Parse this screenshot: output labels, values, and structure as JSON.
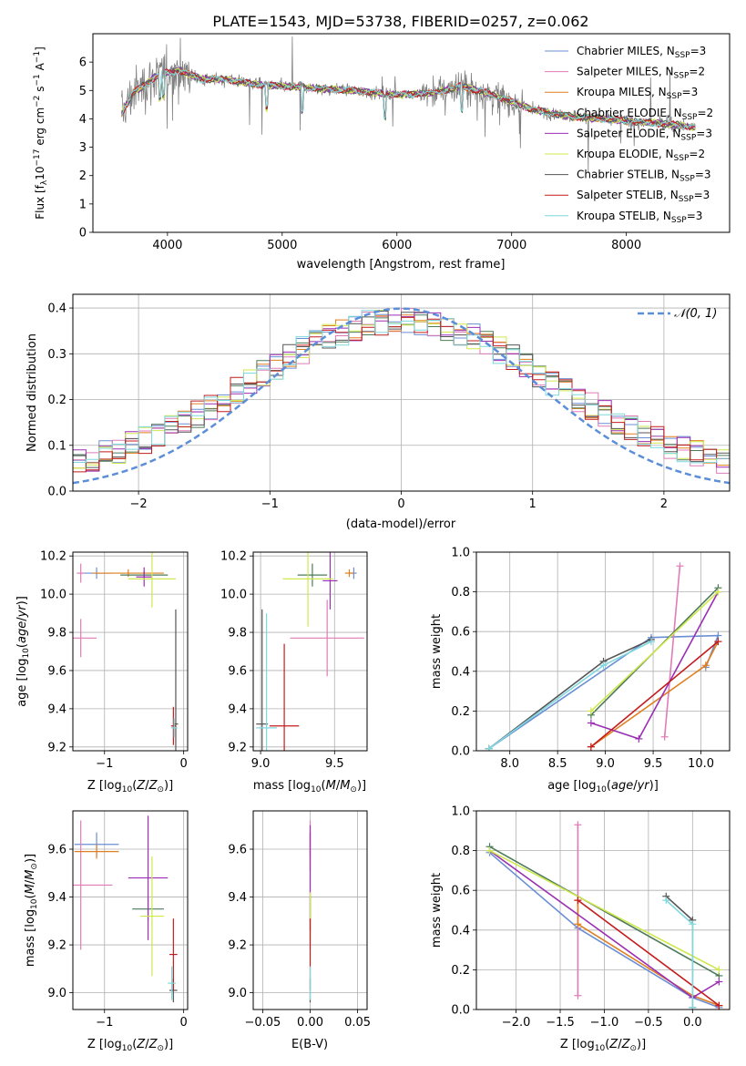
{
  "colors": [
    "#6a8ed4",
    "#e07bb8",
    "#e07f1f",
    "#4d7a5a",
    "#9b2fb3",
    "#cfe84e",
    "#555555",
    "#c41c1c",
    "#7fd8de"
  ],
  "legend_entries": [
    {
      "model": "Chabrier MILES, N",
      "sub": "SSP",
      "tail": "=3"
    },
    {
      "model": "Salpeter MILES, N",
      "sub": "SSP",
      "tail": "=2"
    },
    {
      "model": "Kroupa MILES, N",
      "sub": "SSP",
      "tail": "=3"
    },
    {
      "model": "Chabrier ELODIE, N",
      "sub": "SSP",
      "tail": "=2"
    },
    {
      "model": "Salpeter ELODIE, N",
      "sub": "SSP",
      "tail": "=3"
    },
    {
      "model": "Kroupa ELODIE, N",
      "sub": "SSP",
      "tail": "=2"
    },
    {
      "model": "Chabrier STELIB, N",
      "sub": "SSP",
      "tail": "=3"
    },
    {
      "model": "Salpeter STELIB, N",
      "sub": "SSP",
      "tail": "=3"
    },
    {
      "model": "Kroupa STELIB, N",
      "sub": "SSP",
      "tail": "=3"
    }
  ],
  "chart_data": [
    {
      "id": "spectrum",
      "type": "line",
      "title": "PLATE=1543, MJD=53738, FIBERID=0257, z=0.062",
      "xlabel": "wavelength [Angstrom, rest frame]",
      "ylabel": {
        "pre": "Flux [f",
        "sub": "λ",
        "mid": "10",
        "sup1": "−17",
        "post": " erg cm",
        "sup2": "−2",
        "mid2": " s",
        "sup3": "−1",
        "end": " A",
        "sup4": "−1",
        "close": "]"
      },
      "xlim": [
        3350,
        8900
      ],
      "ylim": [
        0,
        7
      ],
      "xticks": [
        4000,
        5000,
        6000,
        7000,
        8000
      ],
      "yticks": [
        0,
        1,
        2,
        3,
        4,
        5,
        6
      ],
      "observed_range": [
        3600,
        8600
      ],
      "continuum_x": [
        3600,
        3700,
        3800,
        3900,
        4000,
        4100,
        4300,
        4500,
        4800,
        5200,
        5600,
        6000,
        6300,
        6560,
        6800,
        7000,
        7200,
        7500,
        7800,
        8100,
        8400,
        8600
      ],
      "continuum_y": [
        4.2,
        4.9,
        5.2,
        5.5,
        5.65,
        5.7,
        5.4,
        5.4,
        5.2,
        5.1,
        5.0,
        4.85,
        4.9,
        5.15,
        4.9,
        4.6,
        4.3,
        4.1,
        4.0,
        3.9,
        3.8,
        3.7
      ],
      "absorption_lines": [
        3934,
        3969,
        4861,
        5175,
        5895,
        6563
      ]
    },
    {
      "id": "residual-histogram",
      "type": "line",
      "xlabel": "(data-model)/error",
      "ylabel": "Normed distribution",
      "xlim": [
        -2.5,
        2.5
      ],
      "ylim": [
        0,
        0.43
      ],
      "xticks": [
        -2,
        -1,
        0,
        1,
        2
      ],
      "yticks": [
        0.0,
        0.1,
        0.2,
        0.3,
        0.4
      ],
      "reference_label": "𝒩(0, 1)",
      "bin_width": 0.1
    },
    {
      "id": "age-vs-Z",
      "type": "scatter",
      "xlabel": "Z [log10(Z/Z⊙)]",
      "ylabel": "age [log10(age/yr)]",
      "xlim": [
        -1.4,
        0.05
      ],
      "ylim": [
        9.18,
        10.22
      ],
      "xticks": [
        -1,
        0
      ],
      "yticks": [
        9.2,
        9.4,
        9.6,
        9.8,
        10.0,
        10.2
      ],
      "points": [
        {
          "series": 0,
          "x": -1.1,
          "y": 10.11,
          "xerr": 0.2,
          "yerr": 0.03
        },
        {
          "series": 1,
          "x": -1.3,
          "y": 9.77,
          "xerr": 0.2,
          "yerr": 0.1
        },
        {
          "series": 1,
          "x": -1.3,
          "y": 10.11,
          "xerr": 0.05,
          "yerr": 0.05
        },
        {
          "series": 2,
          "x": -0.7,
          "y": 10.11,
          "xerr": 0.45,
          "yerr": 0.02
        },
        {
          "series": 3,
          "x": -0.5,
          "y": 10.1,
          "xerr": 0.3,
          "yerr": 0.02
        },
        {
          "series": 4,
          "x": -0.5,
          "y": 10.09,
          "xerr": 0.1,
          "yerr": 0.05
        },
        {
          "series": 5,
          "x": -0.4,
          "y": 10.08,
          "xerr": 0.3,
          "yerr": 0.15
        },
        {
          "series": 6,
          "x": -0.1,
          "y": 9.32,
          "xerr": 0.03,
          "yerr": 0.6
        },
        {
          "series": 7,
          "x": -0.13,
          "y": 9.31,
          "xerr": 0.03,
          "yerr": 0.1
        },
        {
          "series": 8,
          "x": -0.12,
          "y": 9.3,
          "xerr": 0.04,
          "yerr": 0.05
        }
      ]
    },
    {
      "id": "age-vs-mass",
      "type": "scatter",
      "xlabel": "mass [log10(M/M⊙)]",
      "xlim": [
        8.95,
        9.72
      ],
      "ylim": [
        9.18,
        10.22
      ],
      "xticks": [
        9.0,
        9.5
      ],
      "yticks": [
        9.2,
        9.4,
        9.6,
        9.8,
        10.0,
        10.2
      ],
      "points": [
        {
          "series": 0,
          "x": 9.63,
          "y": 10.11,
          "xerr": 0.02,
          "yerr": 0.03
        },
        {
          "series": 1,
          "x": 9.45,
          "y": 9.77,
          "xerr": 0.25,
          "yerr": 0.2
        },
        {
          "series": 2,
          "x": 9.6,
          "y": 10.11,
          "xerr": 0.03,
          "yerr": 0.02
        },
        {
          "series": 3,
          "x": 9.35,
          "y": 10.1,
          "xerr": 0.1,
          "yerr": 0.06
        },
        {
          "series": 4,
          "x": 9.47,
          "y": 10.07,
          "xerr": 0.05,
          "yerr": 0.15
        },
        {
          "series": 5,
          "x": 9.32,
          "y": 10.08,
          "xerr": 0.17,
          "yerr": 0.25
        },
        {
          "series": 6,
          "x": 9.01,
          "y": 9.32,
          "xerr": 0.04,
          "yerr": 0.6
        },
        {
          "series": 7,
          "x": 9.16,
          "y": 9.31,
          "xerr": 0.1,
          "yerr": 0.43
        },
        {
          "series": 8,
          "x": 9.04,
          "y": 9.3,
          "xerr": 0.07,
          "yerr": 0.6
        }
      ]
    },
    {
      "id": "massweight-vs-age",
      "type": "line",
      "xlabel": "age [log10(age/yr)]",
      "ylabel": "mass weight",
      "xlim": [
        7.65,
        10.3
      ],
      "ylim": [
        0,
        1
      ],
      "xticks": [
        8.0,
        8.5,
        9.0,
        9.5,
        10.0
      ],
      "yticks": [
        0.0,
        0.2,
        0.4,
        0.6,
        0.8,
        1.0
      ],
      "series": [
        {
          "index": 0,
          "x": [
            7.78,
            9.48,
            10.18,
            10.05
          ],
          "y": [
            0.01,
            0.57,
            0.58,
            0.42
          ]
        },
        {
          "index": 1,
          "x": [
            9.62,
            9.78
          ],
          "y": [
            0.07,
            0.93
          ]
        },
        {
          "index": 2,
          "x": [
            8.85,
            10.05,
            10.18
          ],
          "y": [
            0.02,
            0.43,
            0.55
          ]
        },
        {
          "index": 3,
          "x": [
            8.85,
            10.18
          ],
          "y": [
            0.18,
            0.82
          ]
        },
        {
          "index": 4,
          "x": [
            8.85,
            9.35,
            10.18
          ],
          "y": [
            0.14,
            0.06,
            0.8
          ]
        },
        {
          "index": 5,
          "x": [
            8.85,
            10.18
          ],
          "y": [
            0.2,
            0.8
          ]
        },
        {
          "index": 6,
          "x": [
            7.78,
            8.98,
            9.48
          ],
          "y": [
            0.01,
            0.45,
            0.56
          ]
        },
        {
          "index": 7,
          "x": [
            8.85,
            10.18
          ],
          "y": [
            0.02,
            0.55
          ]
        },
        {
          "index": 8,
          "x": [
            7.78,
            8.98,
            9.48
          ],
          "y": [
            0.01,
            0.43,
            0.55
          ]
        }
      ]
    },
    {
      "id": "mass-vs-Z",
      "type": "scatter",
      "xlabel": "Z [log10(Z/Z⊙)]",
      "ylabel": "mass [log10(M/M⊙)]",
      "xlim": [
        -1.4,
        0.05
      ],
      "ylim": [
        8.93,
        9.76
      ],
      "xticks": [
        -1,
        0
      ],
      "yticks": [
        9.0,
        9.2,
        9.4,
        9.6
      ],
      "points": [
        {
          "series": 0,
          "x": -1.1,
          "y": 9.62,
          "xerr": 0.28,
          "yerr": 0.05
        },
        {
          "series": 1,
          "x": -1.3,
          "y": 9.45,
          "xerr": 0.4,
          "yerr": 0.27
        },
        {
          "series": 2,
          "x": -1.1,
          "y": 9.59,
          "xerr": 0.28,
          "yerr": 0.03
        },
        {
          "series": 3,
          "x": -0.45,
          "y": 9.35,
          "xerr": 0.2,
          "yerr": 0.05
        },
        {
          "series": 4,
          "x": -0.45,
          "y": 9.48,
          "xerr": 0.25,
          "yerr": 0.26
        },
        {
          "series": 5,
          "x": -0.4,
          "y": 9.32,
          "xerr": 0.15,
          "yerr": 0.25
        },
        {
          "series": 6,
          "x": -0.13,
          "y": 9.01,
          "xerr": 0.05,
          "yerr": 0.05
        },
        {
          "series": 7,
          "x": -0.13,
          "y": 9.16,
          "xerr": 0.05,
          "yerr": 0.15
        },
        {
          "series": 8,
          "x": -0.15,
          "y": 9.04,
          "xerr": 0.05,
          "yerr": 0.07
        }
      ]
    },
    {
      "id": "mass-vs-EBV",
      "type": "scatter",
      "xlabel": "E(B-V)",
      "xlim": [
        -0.06,
        0.06
      ],
      "ylim": [
        8.93,
        9.76
      ],
      "xticks": [
        -0.05,
        0.0,
        0.05
      ],
      "xticklabels": [
        "−0.05",
        "0.00",
        "0.05"
      ],
      "yticks": [
        9.0,
        9.2,
        9.4,
        9.6
      ],
      "points": [
        {
          "series": 0,
          "x": 0,
          "y": 9.62,
          "xerr": 0,
          "yerr": 0.05
        },
        {
          "series": 1,
          "x": 0,
          "y": 9.45,
          "xerr": 0,
          "yerr": 0.27
        },
        {
          "series": 2,
          "x": 0,
          "y": 9.59,
          "xerr": 0,
          "yerr": 0.08
        },
        {
          "series": 3,
          "x": 0,
          "y": 9.35,
          "xerr": 0,
          "yerr": 0.05
        },
        {
          "series": 4,
          "x": 0,
          "y": 9.48,
          "xerr": 0,
          "yerr": 0.22
        },
        {
          "series": 5,
          "x": 0,
          "y": 9.32,
          "xerr": 0,
          "yerr": 0.1
        },
        {
          "series": 6,
          "x": 0,
          "y": 9.01,
          "xerr": 0,
          "yerr": 0.05
        },
        {
          "series": 7,
          "x": 0,
          "y": 9.16,
          "xerr": 0,
          "yerr": 0.15
        },
        {
          "series": 8,
          "x": 0,
          "y": 9.04,
          "xerr": 0,
          "yerr": 0.07
        }
      ]
    },
    {
      "id": "massweight-vs-Z",
      "type": "line",
      "xlabel": "Z [log10(Z/Z⊙)]",
      "ylabel": "mass weight",
      "xlim": [
        -2.45,
        0.42
      ],
      "ylim": [
        0,
        1
      ],
      "xticks": [
        -2.0,
        -1.5,
        -1.0,
        -0.5,
        0.0
      ],
      "xticklabels": [
        "−2.0",
        "−1.5",
        "−1.0",
        "−0.5",
        "0.0"
      ],
      "yticks": [
        0.0,
        0.2,
        0.4,
        0.6,
        0.8,
        1.0
      ],
      "series": [
        {
          "index": 0,
          "x": [
            -2.3,
            -1.3,
            0.0,
            0.3
          ],
          "y": [
            0.79,
            0.41,
            0.06,
            0.01
          ]
        },
        {
          "index": 1,
          "x": [
            -1.3,
            -1.3
          ],
          "y": [
            0.07,
            0.93
          ]
        },
        {
          "index": 2,
          "x": [
            -1.3,
            -1.3,
            0.0,
            0.3
          ],
          "y": [
            0.55,
            0.43,
            0.07,
            0.02
          ]
        },
        {
          "index": 3,
          "x": [
            -2.3,
            0.3
          ],
          "y": [
            0.82,
            0.17
          ]
        },
        {
          "index": 4,
          "x": [
            -2.3,
            0.0,
            0.3
          ],
          "y": [
            0.8,
            0.06,
            0.14
          ]
        },
        {
          "index": 5,
          "x": [
            -2.3,
            0.3
          ],
          "y": [
            0.8,
            0.2
          ]
        },
        {
          "index": 6,
          "x": [
            -0.3,
            0.0,
            0.0
          ],
          "y": [
            0.57,
            0.45,
            0.01
          ]
        },
        {
          "index": 7,
          "x": [
            -1.3,
            0.3
          ],
          "y": [
            0.55,
            0.02
          ]
        },
        {
          "index": 8,
          "x": [
            -0.3,
            0.0,
            0.0
          ],
          "y": [
            0.55,
            0.43,
            0.01
          ]
        }
      ]
    }
  ]
}
